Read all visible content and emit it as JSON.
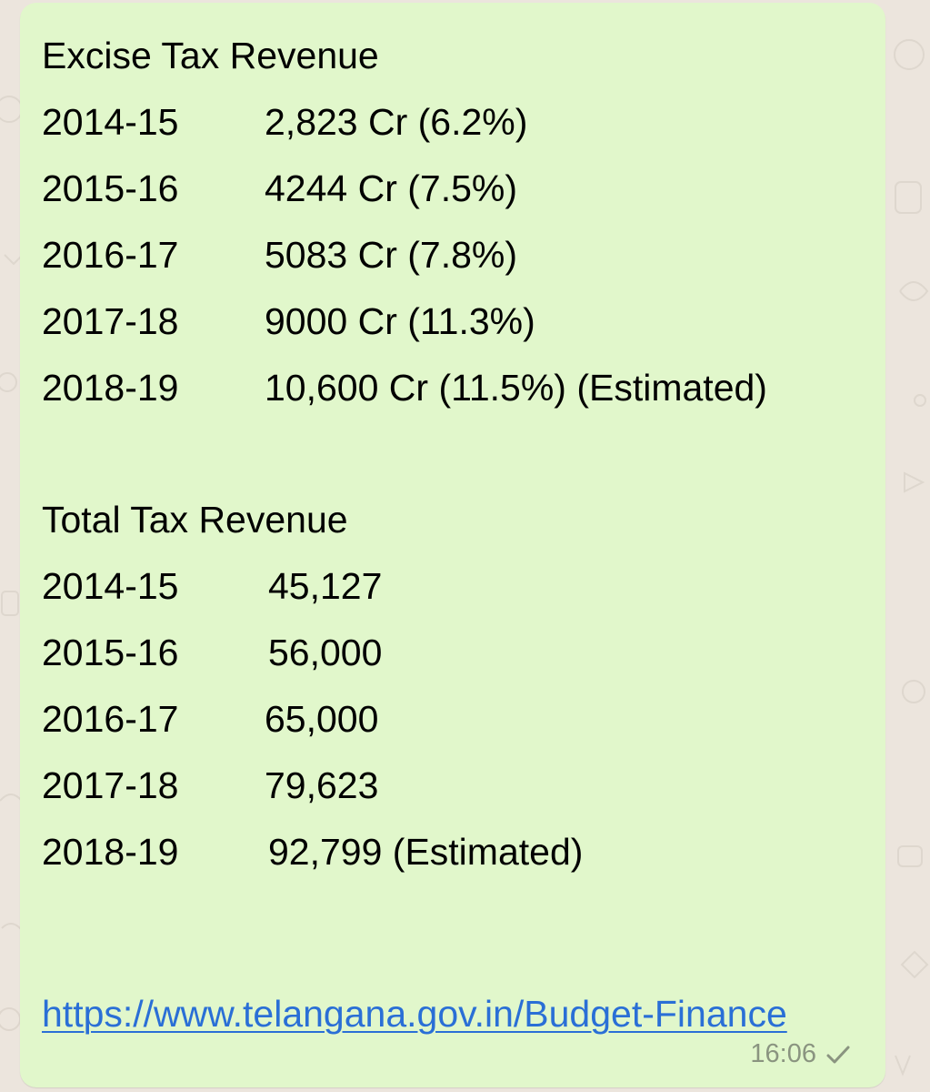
{
  "message": {
    "excise": {
      "title": "Excise Tax Revenue",
      "rows": [
        {
          "year": "2014-15",
          "value": "2,823 Cr (6.2%)"
        },
        {
          "year": "2015-16",
          "value": "4244 Cr (7.5%)"
        },
        {
          "year": "2016-17",
          "value": "5083 Cr (7.8%)"
        },
        {
          "year": "2017-18",
          "value": "9000 Cr (11.3%)"
        },
        {
          "year": "2018-19",
          "value": "10,600 Cr (11.5%) (Estimated)"
        }
      ]
    },
    "total": {
      "title": "Total Tax Revenue",
      "rows": [
        {
          "year": "2014-15",
          "value": "45,127"
        },
        {
          "year": "2015-16",
          "value": "56,000"
        },
        {
          "year": "2016-17",
          "value": "65,000"
        },
        {
          "year": "2017-18",
          "value": "79,623"
        },
        {
          "year": "2018-19",
          "value": "92,799 (Estimated)"
        }
      ]
    },
    "link": "https://www.telangana.gov.in/Budget-Finance",
    "time": "16:06",
    "status_icon": "single-check-icon"
  },
  "colors": {
    "bubble": "#e1f7cb",
    "background": "#ece5dd",
    "link": "#2a6fd6",
    "meta": "#8a9480"
  }
}
